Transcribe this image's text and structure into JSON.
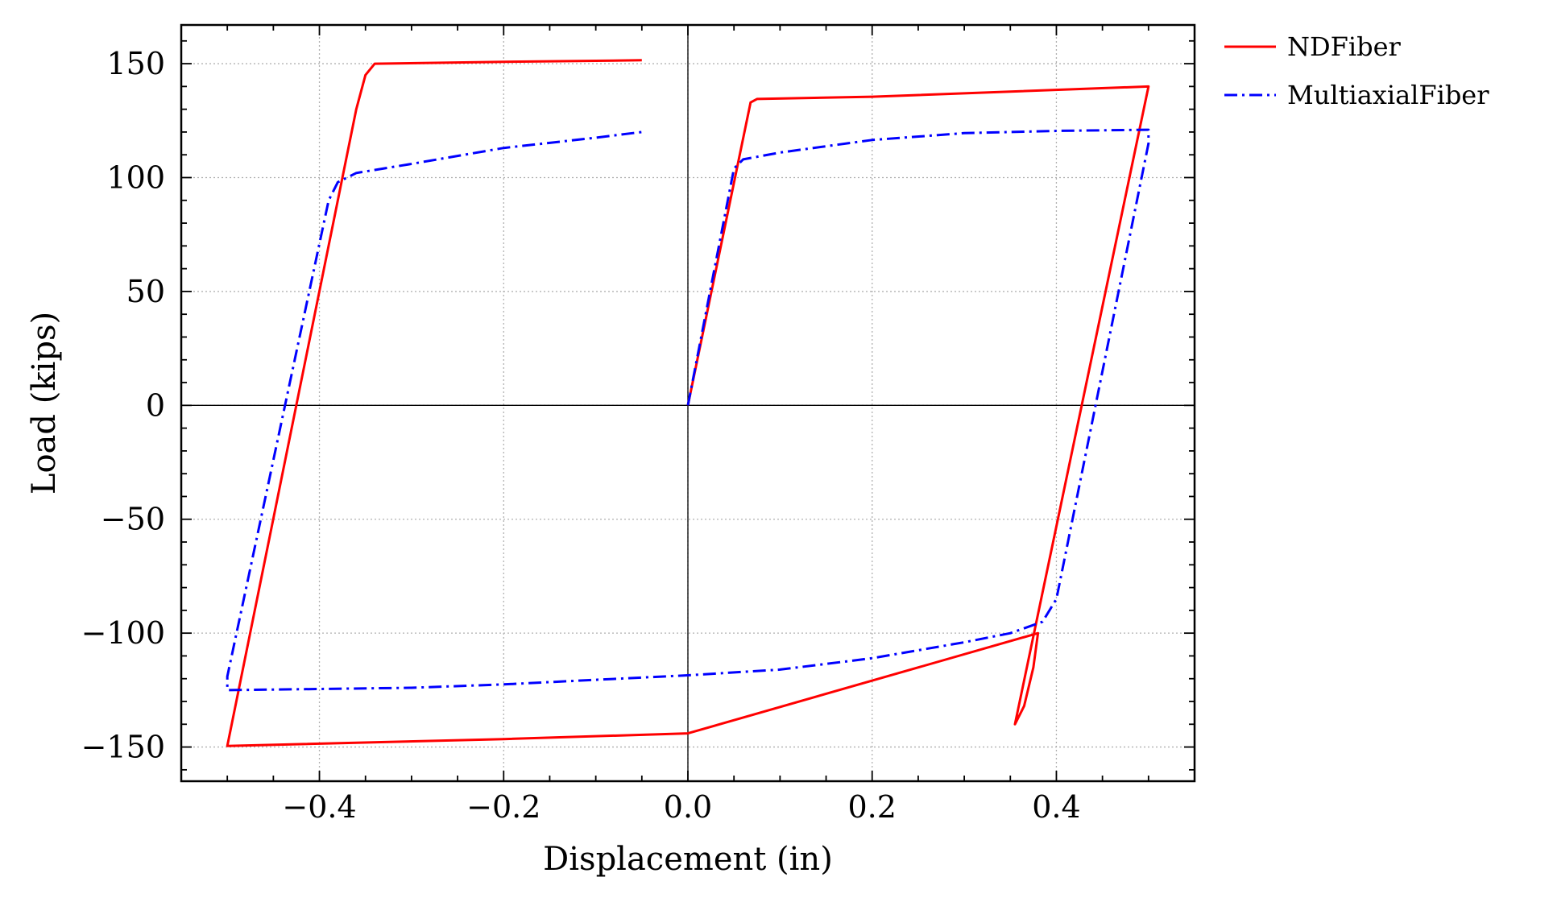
{
  "chart_data": {
    "type": "line",
    "xlabel": "Displacement (in)",
    "ylabel": "Load (kips)",
    "xlim": [
      -0.55,
      0.55
    ],
    "ylim": [
      -165,
      167
    ],
    "grid": true,
    "legend_position": "outside-top-right",
    "x_ticks": [
      -0.4,
      -0.2,
      0.0,
      0.2,
      0.4
    ],
    "x_tick_labels": [
      "−0.4",
      "−0.2",
      "0.0",
      "0.2",
      "0.4"
    ],
    "y_ticks": [
      150,
      100,
      50,
      0,
      -50,
      -100,
      -150
    ],
    "y_tick_labels": [
      "150",
      "100",
      "50",
      "0",
      "−50",
      "−100",
      "−150"
    ],
    "series": [
      {
        "name": "NDFiber",
        "color": "#ff0000",
        "style": "solid",
        "points": [
          [
            0.0,
            0
          ],
          [
            0.068,
            133
          ],
          [
            0.075,
            134.5
          ],
          [
            0.2,
            135.5
          ],
          [
            0.5,
            140
          ],
          [
            0.355,
            -140
          ],
          [
            0.365,
            -132
          ],
          [
            0.375,
            -115
          ],
          [
            0.38,
            -100
          ],
          [
            0.0,
            -144
          ],
          [
            -0.2,
            -146.5
          ],
          [
            -0.5,
            -149.5
          ],
          [
            -0.36,
            130
          ],
          [
            -0.35,
            145
          ],
          [
            -0.34,
            150
          ],
          [
            -0.2,
            150.8
          ],
          [
            -0.05,
            151.5
          ]
        ]
      },
      {
        "name": "MultiaxialFiber",
        "color": "#0000ff",
        "style": "dashdot",
        "points": [
          [
            0.0,
            0
          ],
          [
            0.05,
            104
          ],
          [
            0.06,
            108
          ],
          [
            0.1,
            111
          ],
          [
            0.2,
            116.5
          ],
          [
            0.3,
            119.5
          ],
          [
            0.4,
            120.5
          ],
          [
            0.5,
            121
          ],
          [
            0.5,
            115
          ],
          [
            0.4,
            -85
          ],
          [
            0.385,
            -95
          ],
          [
            0.35,
            -100
          ],
          [
            0.3,
            -104
          ],
          [
            0.2,
            -111
          ],
          [
            0.1,
            -116
          ],
          [
            0.0,
            -118.5
          ],
          [
            -0.1,
            -120.5
          ],
          [
            -0.2,
            -122.5
          ],
          [
            -0.3,
            -124
          ],
          [
            -0.4,
            -124.5
          ],
          [
            -0.5,
            -125
          ],
          [
            -0.5,
            -119
          ],
          [
            -0.39,
            90
          ],
          [
            -0.38,
            98
          ],
          [
            -0.36,
            102
          ],
          [
            -0.3,
            106
          ],
          [
            -0.2,
            113
          ],
          [
            -0.1,
            117.5
          ],
          [
            -0.05,
            120
          ]
        ]
      }
    ]
  }
}
